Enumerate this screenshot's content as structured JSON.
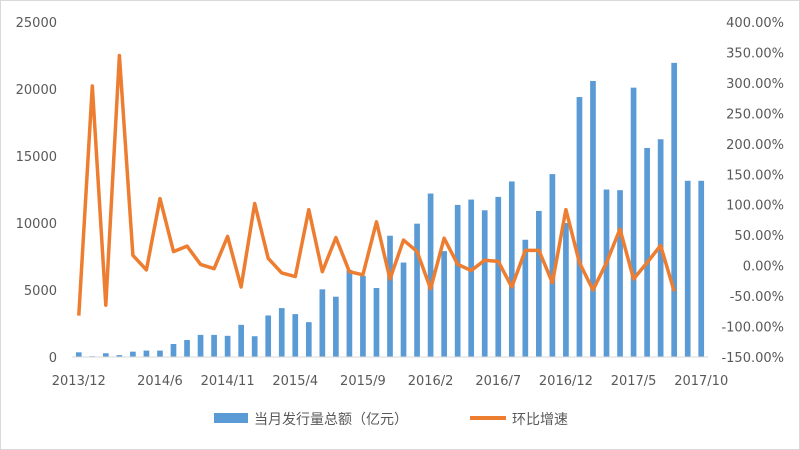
{
  "chart_data": {
    "type": "bar+line",
    "x": [
      "2013/12",
      "2014/1",
      "2014/2",
      "2014/3",
      "2014/4",
      "2014/5",
      "2014/6",
      "2014/7",
      "2014/8",
      "2014/9",
      "2014/10",
      "2014/11",
      "2014/12",
      "2015/1",
      "2015/2",
      "2015/3",
      "2015/4",
      "2015/5",
      "2015/6",
      "2015/7",
      "2015/8",
      "2015/9",
      "2015/10",
      "2015/11",
      "2015/12",
      "2016/1",
      "2016/2",
      "2016/3",
      "2016/4",
      "2016/5",
      "2016/6",
      "2016/7",
      "2016/8",
      "2016/9",
      "2016/10",
      "2016/11",
      "2016/12",
      "2017/1",
      "2017/2",
      "2017/3",
      "2017/4",
      "2017/5",
      "2017/6",
      "2017/7",
      "2017/8",
      "2017/9",
      "2017/10"
    ],
    "x_tick_labels": [
      "2013/12",
      "2014/6",
      "2014/11",
      "2015/4",
      "2015/9",
      "2016/2",
      "2016/7",
      "2016/12",
      "2017/5",
      "2017/10"
    ],
    "y_left": {
      "min": 0,
      "max": 25000,
      "ticks": [
        "0",
        "5000",
        "10000",
        "15000",
        "20000",
        "25000"
      ]
    },
    "y_right": {
      "min": -1.5,
      "max": 4.0,
      "ticks": [
        "-150.00%",
        "-100.00%",
        "-50.00%",
        "0.00%",
        "50.00%",
        "100.00%",
        "150.00%",
        "200.00%",
        "250.00%",
        "300.00%",
        "350.00%",
        "400.00%"
      ]
    },
    "series": [
      {
        "name": "当月发行量总额（亿元）",
        "type": "bar",
        "axis": "left",
        "color": "#5b9bd5",
        "values": [
          350,
          60,
          280,
          140,
          400,
          480,
          480,
          970,
          1270,
          1650,
          1650,
          1580,
          2400,
          1550,
          3100,
          3650,
          3200,
          2600,
          5050,
          4500,
          6500,
          6050,
          5150,
          9050,
          7050,
          9950,
          12200,
          7900,
          11350,
          11750,
          10950,
          11950,
          13100,
          8750,
          10900,
          13650,
          10000,
          19400,
          20600,
          12500,
          12450,
          20100,
          15600,
          16250,
          21950,
          13150,
          13150
        ]
      },
      {
        "name": "环比增速",
        "type": "line",
        "axis": "right",
        "color": "#ed7d31",
        "values": [
          -0.82,
          2.95,
          -0.65,
          3.45,
          0.17,
          -0.07,
          1.1,
          0.23,
          0.32,
          0.02,
          -0.05,
          0.48,
          -0.35,
          1.02,
          0.12,
          -0.12,
          -0.18,
          0.92,
          -0.1,
          0.46,
          -0.1,
          -0.15,
          0.72,
          -0.22,
          0.42,
          0.23,
          -0.38,
          0.45,
          0.02,
          -0.08,
          0.09,
          0.07,
          -0.35,
          0.25,
          0.25,
          -0.28,
          0.92,
          0.05,
          -0.4,
          0.05,
          0.6,
          -0.22,
          0.05,
          0.33,
          -0.42,
          null,
          null
        ]
      }
    ],
    "legend": {
      "position": "bottom"
    },
    "grid": false,
    "title": ""
  }
}
